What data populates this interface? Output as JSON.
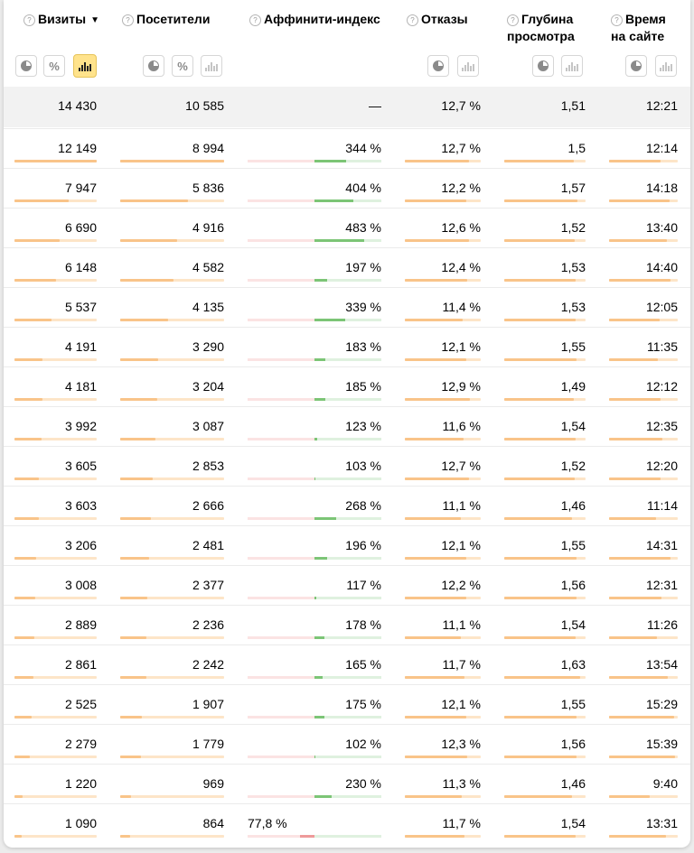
{
  "headers": {
    "visits": "Визиты",
    "visitors": "Посетители",
    "affinity": "Аффинити-индекс",
    "bounces": "Отказы",
    "depth_l1": "Глубина",
    "depth_l2": "просмотра",
    "time_l1": "Время",
    "time_l2": "на сайте",
    "help_glyph": "?",
    "sort_glyph": "▼",
    "percent_glyph": "%"
  },
  "icons": [
    "help-icon",
    "sort-desc-icon",
    "pie-chart-icon",
    "percent-icon",
    "bar-chart-icon"
  ],
  "colors": {
    "bar_track": "#fde5c8",
    "bar_fill": "#f9c489",
    "affinity_positive": "#7cc576",
    "affinity_negative": "#ee9a9a",
    "active_button": "#ffe38c",
    "total_row_bg": "#f2f2f2"
  },
  "total": {
    "visits": "14 430",
    "visitors": "10 585",
    "affinity": "—",
    "bounces": "12,7 %",
    "depth": "1,51",
    "time": "12:21"
  },
  "rows": [
    {
      "visits": "12 149",
      "visitors": "8 994",
      "affinity": "344 %",
      "bounces": "12,7 %",
      "depth": "1,5",
      "time": "12:14"
    },
    {
      "visits": "7 947",
      "visitors": "5 836",
      "affinity": "404 %",
      "bounces": "12,2 %",
      "depth": "1,57",
      "time": "14:18"
    },
    {
      "visits": "6 690",
      "visitors": "4 916",
      "affinity": "483 %",
      "bounces": "12,6 %",
      "depth": "1,52",
      "time": "13:40"
    },
    {
      "visits": "6 148",
      "visitors": "4 582",
      "affinity": "197 %",
      "bounces": "12,4 %",
      "depth": "1,53",
      "time": "14:40"
    },
    {
      "visits": "5 537",
      "visitors": "4 135",
      "affinity": "339 %",
      "bounces": "11,4 %",
      "depth": "1,53",
      "time": "12:05"
    },
    {
      "visits": "4 191",
      "visitors": "3 290",
      "affinity": "183 %",
      "bounces": "12,1 %",
      "depth": "1,55",
      "time": "11:35"
    },
    {
      "visits": "4 181",
      "visitors": "3 204",
      "affinity": "185 %",
      "bounces": "12,9 %",
      "depth": "1,49",
      "time": "12:12"
    },
    {
      "visits": "3 992",
      "visitors": "3 087",
      "affinity": "123 %",
      "bounces": "11,6 %",
      "depth": "1,54",
      "time": "12:35"
    },
    {
      "visits": "3 605",
      "visitors": "2 853",
      "affinity": "103 %",
      "bounces": "12,7 %",
      "depth": "1,52",
      "time": "12:20"
    },
    {
      "visits": "3 603",
      "visitors": "2 666",
      "affinity": "268 %",
      "bounces": "11,1 %",
      "depth": "1,46",
      "time": "11:14"
    },
    {
      "visits": "3 206",
      "visitors": "2 481",
      "affinity": "196 %",
      "bounces": "12,1 %",
      "depth": "1,55",
      "time": "14:31"
    },
    {
      "visits": "3 008",
      "visitors": "2 377",
      "affinity": "117 %",
      "bounces": "12,2 %",
      "depth": "1,56",
      "time": "12:31"
    },
    {
      "visits": "2 889",
      "visitors": "2 236",
      "affinity": "178 %",
      "bounces": "11,1 %",
      "depth": "1,54",
      "time": "11:26"
    },
    {
      "visits": "2 861",
      "visitors": "2 242",
      "affinity": "165 %",
      "bounces": "11,7 %",
      "depth": "1,63",
      "time": "13:54"
    },
    {
      "visits": "2 525",
      "visitors": "1 907",
      "affinity": "175 %",
      "bounces": "12,1 %",
      "depth": "1,55",
      "time": "15:29"
    },
    {
      "visits": "2 279",
      "visitors": "1 779",
      "affinity": "102 %",
      "bounces": "12,3 %",
      "depth": "1,56",
      "time": "15:39"
    },
    {
      "visits": "1 220",
      "visitors": "969",
      "affinity": "230 %",
      "bounces": "11,3 %",
      "depth": "1,46",
      "time": "9:40"
    },
    {
      "visits": "1 090",
      "visitors": "864",
      "affinity": "77,8 %",
      "bounces": "11,7 %",
      "depth": "1,54",
      "time": "13:31"
    }
  ]
}
